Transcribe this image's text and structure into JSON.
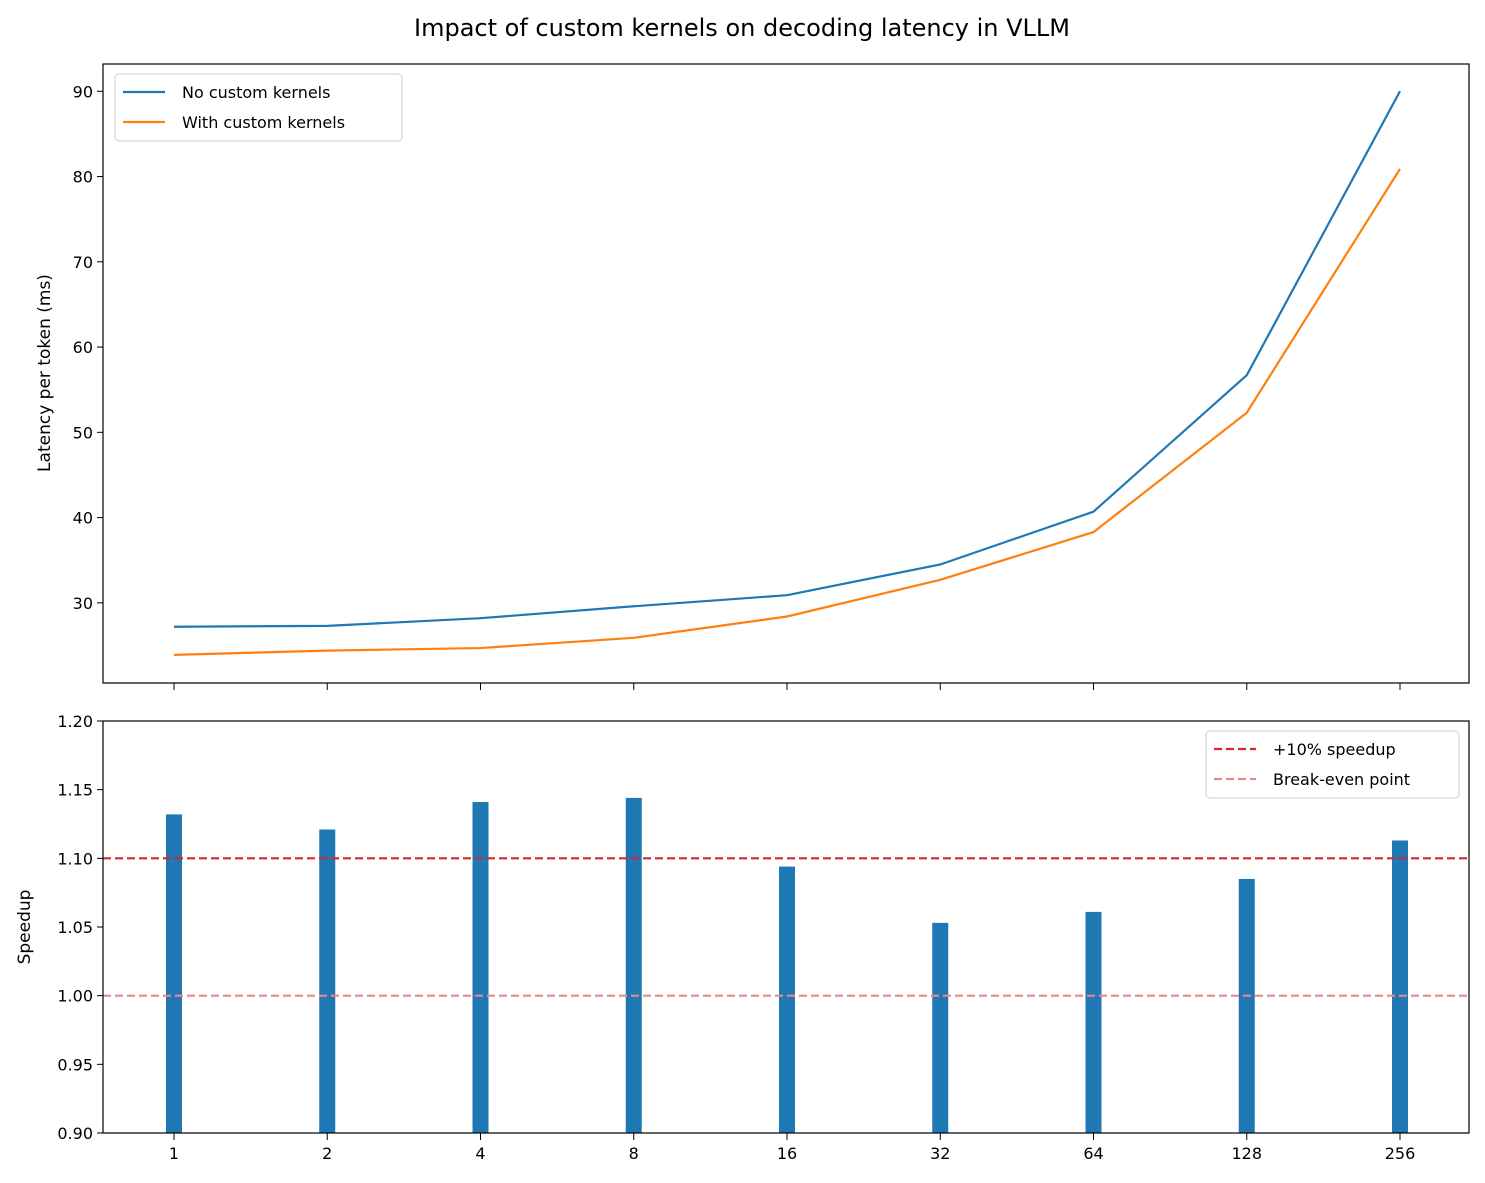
{
  "chart_data": [
    {
      "type": "line",
      "title": "Impact of custom kernels on decoding latency in VLLM",
      "xlabel": "",
      "ylabel": "Latency per token (ms)",
      "categories": [
        "1",
        "2",
        "4",
        "8",
        "16",
        "32",
        "64",
        "128",
        "256"
      ],
      "ylim": [
        20.6,
        93.2
      ],
      "yticks": [
        30,
        40,
        50,
        60,
        70,
        80,
        90
      ],
      "grid": false,
      "legend": "top-left",
      "series": [
        {
          "name": "No custom kernels",
          "color": "#1f77b4",
          "values": [
            27.2,
            27.3,
            28.2,
            29.6,
            30.9,
            34.5,
            40.7,
            56.7,
            90.0
          ]
        },
        {
          "name": "With custom kernels",
          "color": "#ff7f0e",
          "values": [
            23.9,
            24.4,
            24.7,
            25.9,
            28.4,
            32.7,
            38.3,
            52.3,
            80.9
          ]
        }
      ]
    },
    {
      "type": "bar",
      "xlabel": "",
      "ylabel": "Speedup",
      "categories": [
        "1",
        "2",
        "4",
        "8",
        "16",
        "32",
        "64",
        "128",
        "256"
      ],
      "values": [
        1.132,
        1.121,
        1.141,
        1.144,
        1.094,
        1.053,
        1.061,
        1.085,
        1.113
      ],
      "bar_color": "#1f77b4",
      "ylim": [
        0.9,
        1.2
      ],
      "yticks": [
        "0.90",
        "0.95",
        "1.00",
        "1.05",
        "1.10",
        "1.15",
        "1.20"
      ],
      "grid": false,
      "legend": "top-right",
      "reference_lines": [
        {
          "name": "+10% speedup",
          "y": 1.1,
          "color": "#d62728",
          "style": "dashed"
        },
        {
          "name": "Break-even point",
          "y": 1.0,
          "color": "#e8888a",
          "style": "dashed"
        }
      ]
    }
  ]
}
